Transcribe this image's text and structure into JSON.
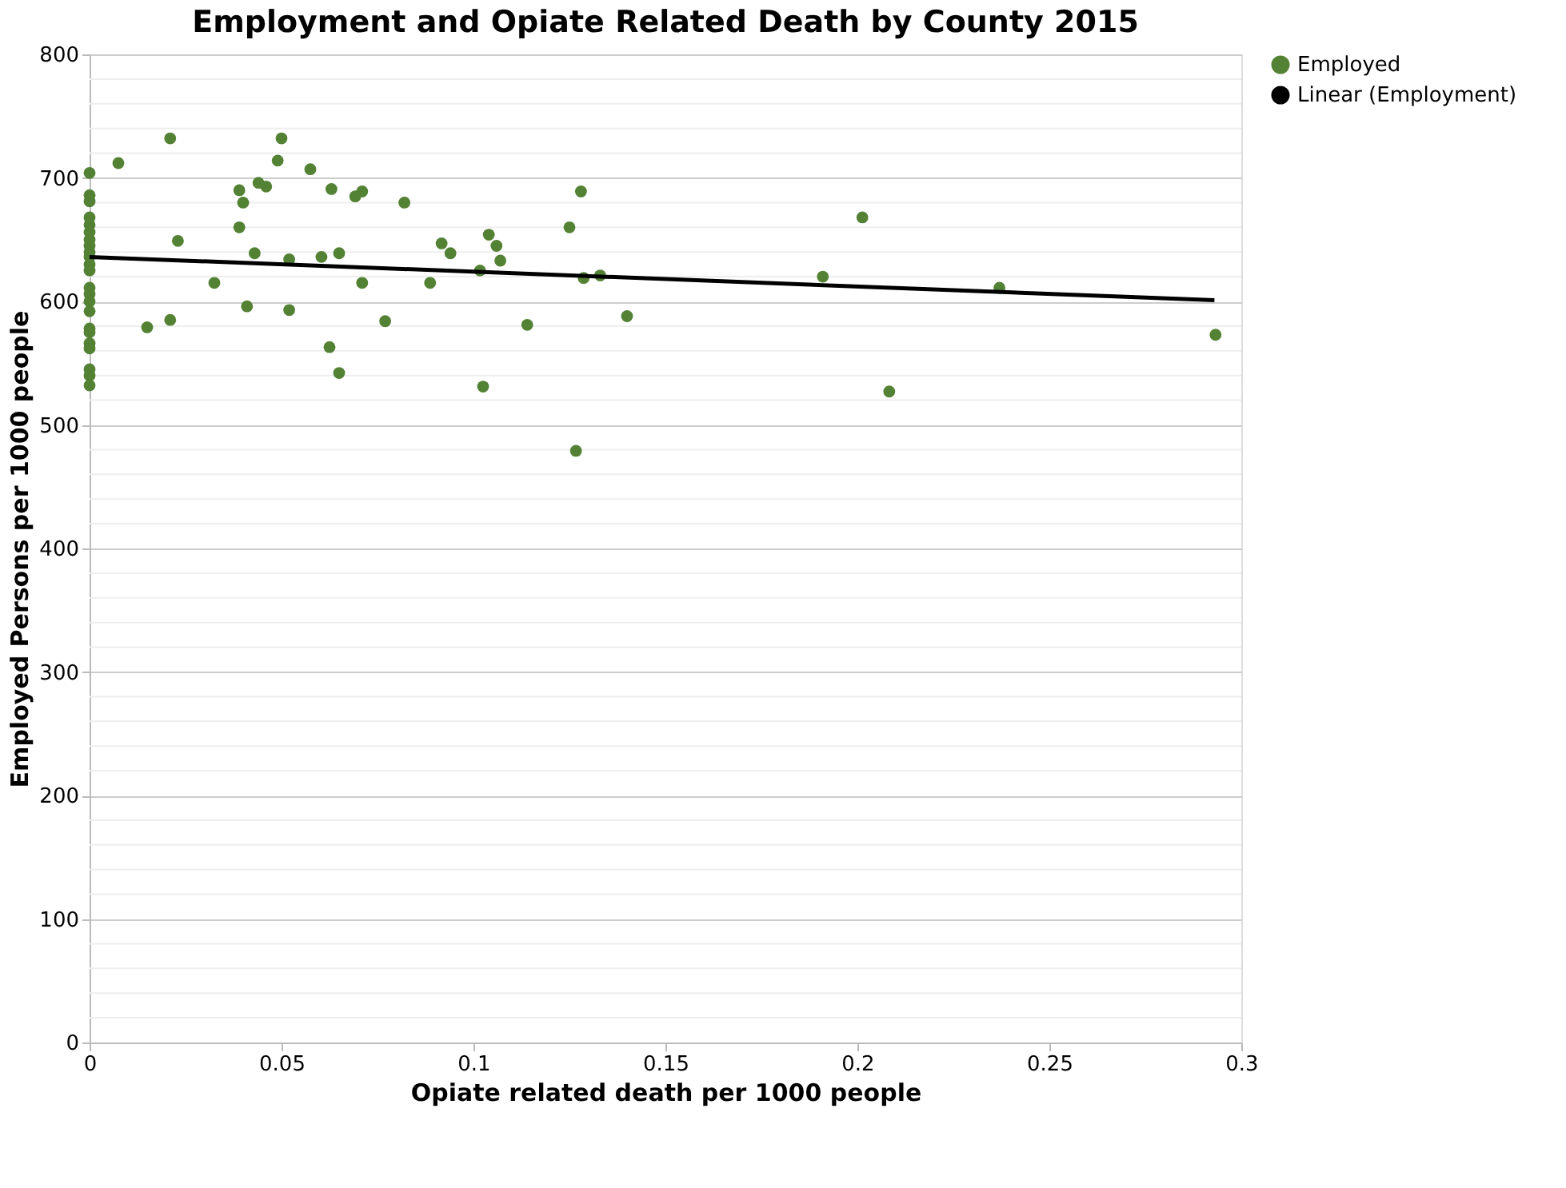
{
  "chart_data": {
    "type": "scatter",
    "title": "Employment and Opiate Related Death by County 2015",
    "xlabel": "Opiate related death per 1000 people",
    "ylabel": "Employed Persons per 1000 people",
    "xlim": [
      0,
      0.3
    ],
    "xticks": [
      0,
      0.05,
      0.1,
      0.15,
      0.2,
      0.25,
      0.3
    ],
    "ylim": [
      0,
      800
    ],
    "yticks": [
      0,
      100,
      200,
      300,
      400,
      500,
      600,
      700,
      800
    ],
    "grid": "y",
    "legend": "right",
    "series": [
      {
        "name": "Employed",
        "marker": "circle",
        "color": "#548235",
        "x": [
          0,
          0,
          0,
          0,
          0,
          0,
          0,
          0,
          0,
          0,
          0,
          0,
          0,
          0,
          0,
          0,
          0,
          0,
          0,
          0,
          0,
          0,
          0,
          0.0075,
          0.021,
          0.023,
          0.015,
          0.021,
          0.0325,
          0.039,
          0.04,
          0.039,
          0.043,
          0.041,
          0.044,
          0.046,
          0.049,
          0.05,
          0.052,
          0.052,
          0.0575,
          0.063,
          0.0604,
          0.065,
          0.0625,
          0.065,
          0.0692,
          0.071,
          0.071,
          0.077,
          0.082,
          0.0887,
          0.0917,
          0.094,
          0.1017,
          0.104,
          0.106,
          0.107,
          0.1025,
          0.114,
          0.125,
          0.128,
          0.1287,
          0.133,
          0.1267,
          0.14,
          0.191,
          0.2013,
          0.2083,
          0.237,
          0.2933
        ],
        "values": [
          704,
          686,
          681,
          668,
          662,
          656,
          650,
          645,
          640,
          636,
          630,
          625,
          611,
          606,
          600,
          592,
          578,
          575,
          566,
          562,
          545,
          540,
          532,
          712,
          732,
          649,
          579,
          585,
          615,
          690,
          680,
          660,
          639,
          596,
          696,
          693,
          714,
          732,
          634,
          593,
          707,
          691,
          636,
          639,
          563,
          542,
          685,
          689,
          615,
          584,
          680,
          615,
          647,
          639,
          625,
          654,
          645,
          633,
          531,
          581,
          660,
          689,
          619,
          621,
          479,
          588,
          620,
          668,
          527,
          611,
          573
        ]
      },
      {
        "name": "Linear (Employment)",
        "type": "line",
        "color": "#000000",
        "line_style": "solid",
        "x": [
          0,
          0.293
        ],
        "values": [
          636,
          601
        ]
      }
    ]
  }
}
